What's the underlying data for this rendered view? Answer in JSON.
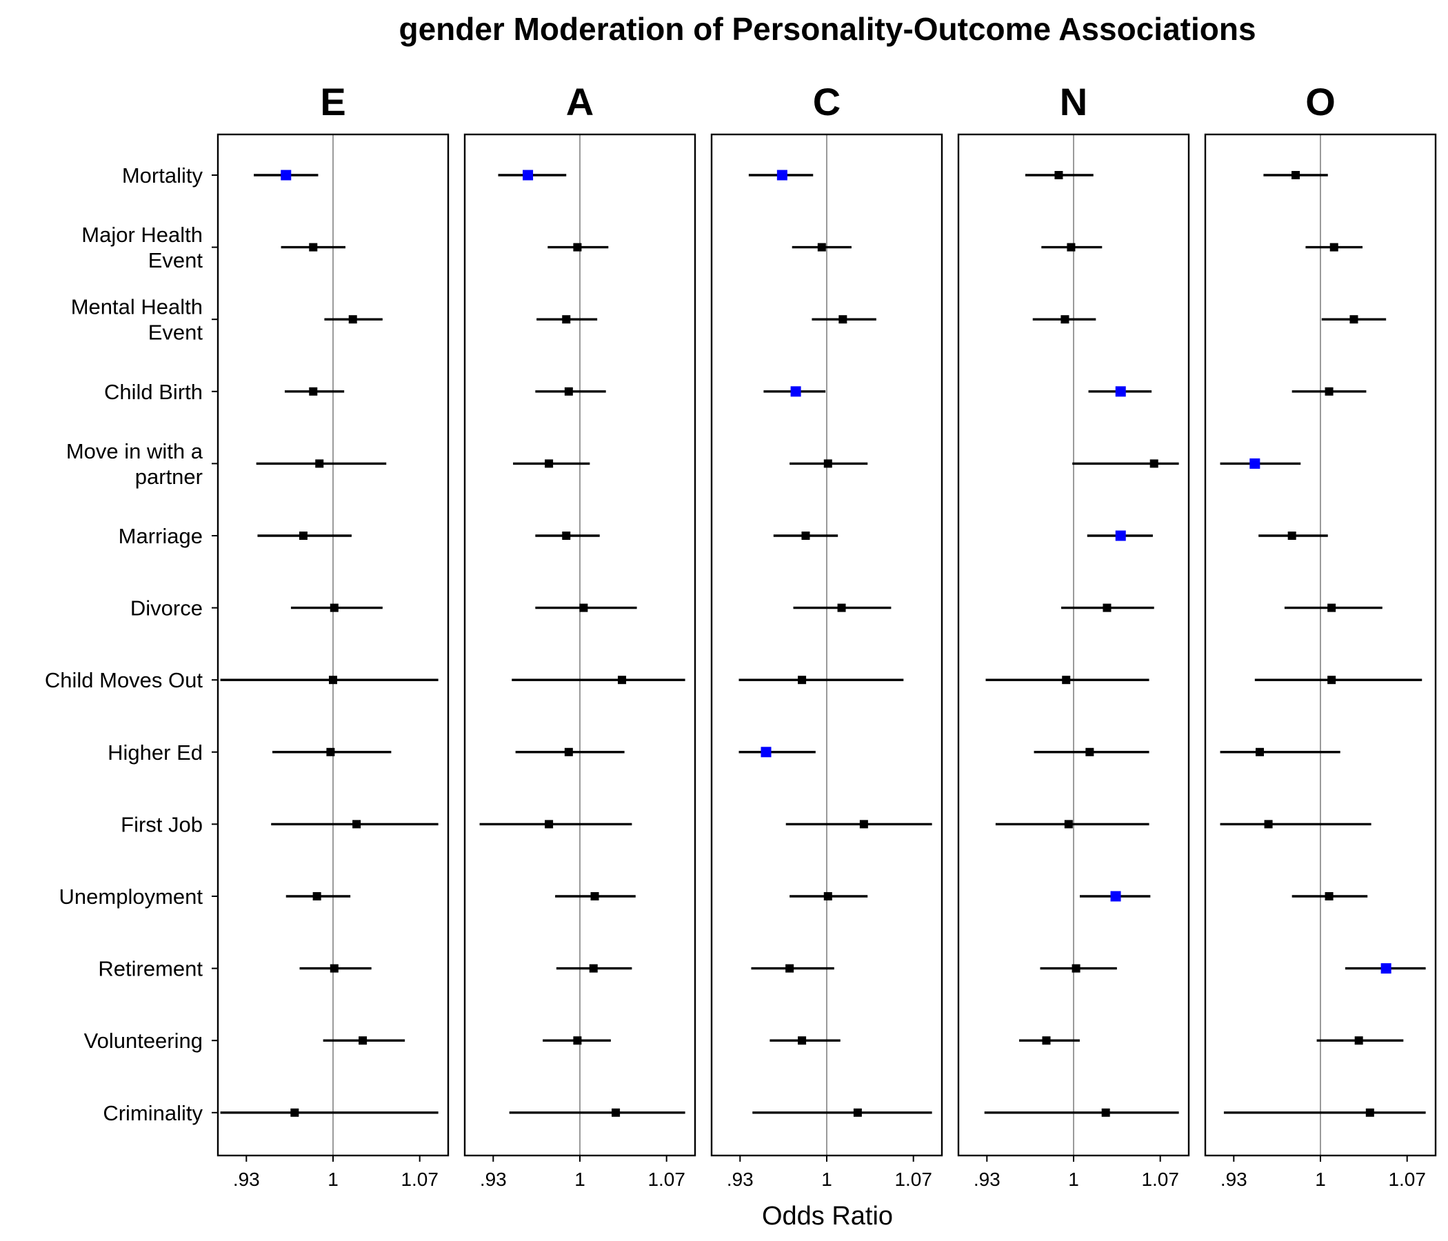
{
  "chart_data": {
    "type": "forest",
    "title": "gender Moderation of Personality-Outcome Associations",
    "xlabel": "Odds Ratio",
    "ylabel": "",
    "xlim": [
      0.907,
      1.093
    ],
    "xticks": [
      0.93,
      1,
      1.07
    ],
    "xtick_labels": [
      ".93",
      "1",
      "1.07"
    ],
    "reference_line": 1,
    "colors": {
      "significant": "#0000ff",
      "nonsignificant": "#000000"
    },
    "outcomes": [
      [
        "Mortality"
      ],
      [
        "Major Health",
        "Event"
      ],
      [
        "Mental Health",
        "Event"
      ],
      [
        "Child Birth"
      ],
      [
        "Move in with a",
        "partner"
      ],
      [
        "Marriage"
      ],
      [
        "Divorce"
      ],
      [
        "Child Moves Out"
      ],
      [
        "Higher Ed"
      ],
      [
        "First Job"
      ],
      [
        "Unemployment"
      ],
      [
        "Retirement"
      ],
      [
        "Volunteering"
      ],
      [
        "Criminality"
      ]
    ],
    "panels": [
      {
        "trait": "E",
        "estimates": [
          {
            "or": 0.962,
            "lo": 0.936,
            "hi": 0.988,
            "sig": true
          },
          {
            "or": 0.984,
            "lo": 0.958,
            "hi": 1.01,
            "sig": false
          },
          {
            "or": 1.016,
            "lo": 0.993,
            "hi": 1.04,
            "sig": false
          },
          {
            "or": 0.984,
            "lo": 0.961,
            "hi": 1.009,
            "sig": false
          },
          {
            "or": 0.989,
            "lo": 0.938,
            "hi": 1.043,
            "sig": false
          },
          {
            "or": 0.976,
            "lo": 0.939,
            "hi": 1.015,
            "sig": false
          },
          {
            "or": 1.001,
            "lo": 0.966,
            "hi": 1.04,
            "sig": false
          },
          {
            "or": 1.0,
            "lo": 0.909,
            "hi": 1.085,
            "sig": false
          },
          {
            "or": 0.998,
            "lo": 0.951,
            "hi": 1.047,
            "sig": false
          },
          {
            "or": 1.019,
            "lo": 0.95,
            "hi": 1.085,
            "sig": false
          },
          {
            "or": 0.987,
            "lo": 0.962,
            "hi": 1.014,
            "sig": false
          },
          {
            "or": 1.001,
            "lo": 0.973,
            "hi": 1.031,
            "sig": false
          },
          {
            "or": 1.024,
            "lo": 0.992,
            "hi": 1.058,
            "sig": false
          },
          {
            "or": 0.969,
            "lo": 0.909,
            "hi": 1.085,
            "sig": false
          }
        ]
      },
      {
        "trait": "A",
        "estimates": [
          {
            "or": 0.958,
            "lo": 0.934,
            "hi": 0.989,
            "sig": true
          },
          {
            "or": 0.998,
            "lo": 0.974,
            "hi": 1.023,
            "sig": false
          },
          {
            "or": 0.989,
            "lo": 0.965,
            "hi": 1.014,
            "sig": false
          },
          {
            "or": 0.991,
            "lo": 0.964,
            "hi": 1.021,
            "sig": false
          },
          {
            "or": 0.975,
            "lo": 0.946,
            "hi": 1.008,
            "sig": false
          },
          {
            "or": 0.989,
            "lo": 0.964,
            "hi": 1.016,
            "sig": false
          },
          {
            "or": 1.003,
            "lo": 0.964,
            "hi": 1.046,
            "sig": false
          },
          {
            "or": 1.034,
            "lo": 0.945,
            "hi": 1.085,
            "sig": false
          },
          {
            "or": 0.991,
            "lo": 0.948,
            "hi": 1.036,
            "sig": false
          },
          {
            "or": 0.975,
            "lo": 0.919,
            "hi": 1.042,
            "sig": false
          },
          {
            "or": 1.012,
            "lo": 0.98,
            "hi": 1.045,
            "sig": false
          },
          {
            "or": 1.011,
            "lo": 0.981,
            "hi": 1.042,
            "sig": false
          },
          {
            "or": 0.998,
            "lo": 0.97,
            "hi": 1.025,
            "sig": false
          },
          {
            "or": 1.029,
            "lo": 0.943,
            "hi": 1.085,
            "sig": false
          }
        ]
      },
      {
        "trait": "C",
        "estimates": [
          {
            "or": 0.964,
            "lo": 0.937,
            "hi": 0.989,
            "sig": true
          },
          {
            "or": 0.996,
            "lo": 0.972,
            "hi": 1.02,
            "sig": false
          },
          {
            "or": 1.013,
            "lo": 0.988,
            "hi": 1.04,
            "sig": false
          },
          {
            "or": 0.975,
            "lo": 0.949,
            "hi": 0.999,
            "sig": true
          },
          {
            "or": 1.001,
            "lo": 0.97,
            "hi": 1.033,
            "sig": false
          },
          {
            "or": 0.983,
            "lo": 0.957,
            "hi": 1.009,
            "sig": false
          },
          {
            "or": 1.012,
            "lo": 0.973,
            "hi": 1.052,
            "sig": false
          },
          {
            "or": 0.98,
            "lo": 0.929,
            "hi": 1.062,
            "sig": false
          },
          {
            "or": 0.951,
            "lo": 0.929,
            "hi": 0.991,
            "sig": true
          },
          {
            "or": 1.03,
            "lo": 0.967,
            "hi": 1.085,
            "sig": false
          },
          {
            "or": 1.001,
            "lo": 0.97,
            "hi": 1.033,
            "sig": false
          },
          {
            "or": 0.97,
            "lo": 0.939,
            "hi": 1.006,
            "sig": false
          },
          {
            "or": 0.98,
            "lo": 0.954,
            "hi": 1.011,
            "sig": false
          },
          {
            "or": 1.025,
            "lo": 0.94,
            "hi": 1.085,
            "sig": false
          }
        ]
      },
      {
        "trait": "N",
        "estimates": [
          {
            "or": 0.988,
            "lo": 0.961,
            "hi": 1.016,
            "sig": false
          },
          {
            "or": 0.998,
            "lo": 0.974,
            "hi": 1.023,
            "sig": false
          },
          {
            "or": 0.993,
            "lo": 0.967,
            "hi": 1.018,
            "sig": false
          },
          {
            "or": 1.038,
            "lo": 1.012,
            "hi": 1.063,
            "sig": true
          },
          {
            "or": 1.065,
            "lo": 0.999,
            "hi": 1.085,
            "sig": false
          },
          {
            "or": 1.038,
            "lo": 1.011,
            "hi": 1.064,
            "sig": true
          },
          {
            "or": 1.027,
            "lo": 0.99,
            "hi": 1.065,
            "sig": false
          },
          {
            "or": 0.994,
            "lo": 0.929,
            "hi": 1.061,
            "sig": false
          },
          {
            "or": 1.013,
            "lo": 0.968,
            "hi": 1.061,
            "sig": false
          },
          {
            "or": 0.996,
            "lo": 0.937,
            "hi": 1.061,
            "sig": false
          },
          {
            "or": 1.034,
            "lo": 1.005,
            "hi": 1.062,
            "sig": true
          },
          {
            "or": 1.002,
            "lo": 0.973,
            "hi": 1.035,
            "sig": false
          },
          {
            "or": 0.978,
            "lo": 0.956,
            "hi": 1.005,
            "sig": false
          },
          {
            "or": 1.026,
            "lo": 0.928,
            "hi": 1.085,
            "sig": false
          }
        ]
      },
      {
        "trait": "O",
        "estimates": [
          {
            "or": 0.98,
            "lo": 0.954,
            "hi": 1.006,
            "sig": false
          },
          {
            "or": 1.011,
            "lo": 0.988,
            "hi": 1.034,
            "sig": false
          },
          {
            "or": 1.027,
            "lo": 1.001,
            "hi": 1.053,
            "sig": false
          },
          {
            "or": 1.007,
            "lo": 0.977,
            "hi": 1.037,
            "sig": false
          },
          {
            "or": 0.947,
            "lo": 0.919,
            "hi": 0.984,
            "sig": true
          },
          {
            "or": 0.977,
            "lo": 0.95,
            "hi": 1.006,
            "sig": false
          },
          {
            "or": 1.009,
            "lo": 0.971,
            "hi": 1.05,
            "sig": false
          },
          {
            "or": 1.009,
            "lo": 0.947,
            "hi": 1.082,
            "sig": false
          },
          {
            "or": 0.951,
            "lo": 0.919,
            "hi": 1.016,
            "sig": false
          },
          {
            "or": 0.958,
            "lo": 0.919,
            "hi": 1.041,
            "sig": false
          },
          {
            "or": 1.007,
            "lo": 0.977,
            "hi": 1.038,
            "sig": false
          },
          {
            "or": 1.053,
            "lo": 1.02,
            "hi": 1.085,
            "sig": true
          },
          {
            "or": 1.031,
            "lo": 0.997,
            "hi": 1.067,
            "sig": false
          },
          {
            "or": 1.04,
            "lo": 0.922,
            "hi": 1.085,
            "sig": false
          }
        ]
      }
    ]
  }
}
